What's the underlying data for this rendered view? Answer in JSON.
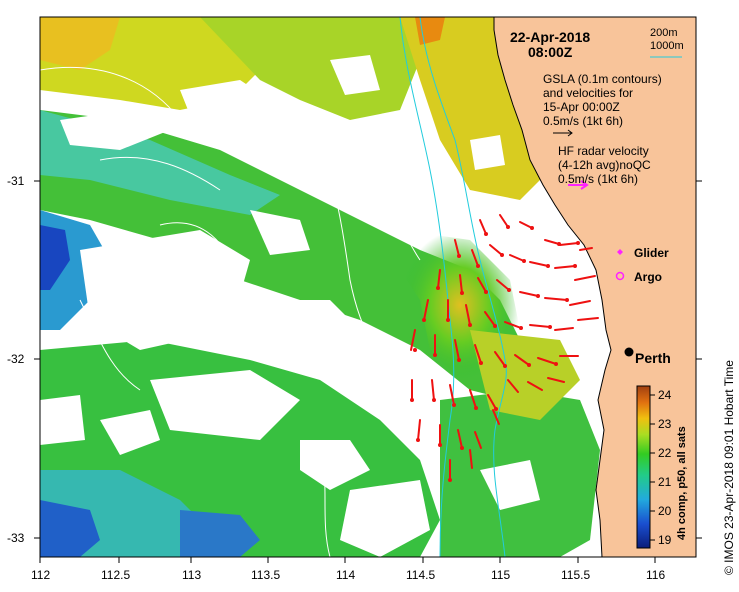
{
  "map": {
    "date": "22-Apr-2018",
    "time": "08:00Z",
    "contours_200": "200m",
    "contours_1000": "1000m",
    "gsla_line1": "GSLA (0.1m contours)",
    "gsla_line2": "and velocities for",
    "gsla_line3": "15-Apr 00:00Z",
    "gsla_line4": "0.5m/s (1kt 6h)",
    "hf_line1": "HF radar velocity",
    "hf_line2": "(4-12h avg)noQC",
    "hf_line3": "0.5m/s (1kt 6h)",
    "glider_label": "Glider",
    "argo_label": "Argo",
    "city_label": "Perth",
    "colorbar_label": "4h comp, p50, all sats",
    "side_caption": "©  IMOS 23-Apr-2018 09:01 Hobart Time"
  },
  "axes": {
    "x_ticks": [
      "112",
      "112.5",
      "113",
      "113.5",
      "114",
      "114.5",
      "115",
      "115.5",
      "116"
    ],
    "y_ticks": [
      "-31",
      "-32",
      "-33"
    ]
  },
  "colorbar": {
    "ticks": [
      "24",
      "23",
      "22",
      "21",
      "20",
      "19"
    ]
  },
  "colors": {
    "land": "#f8c49a",
    "contour": "#22ccdd",
    "hf_arrow": "#ee1111",
    "glider": "#ff22ff",
    "argo": "#ff22ff"
  }
}
